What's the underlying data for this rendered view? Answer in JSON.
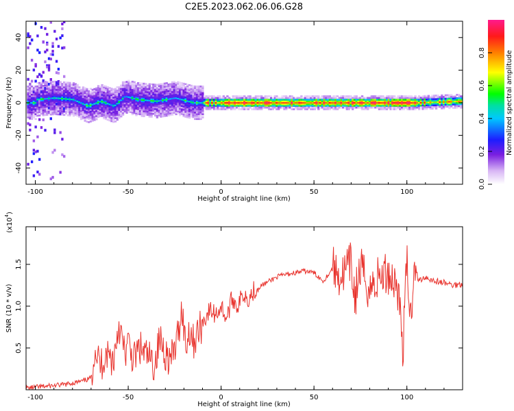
{
  "title": "C2E5.2023.062.06.06.G28",
  "chart_data": [
    {
      "type": "heatmap",
      "xlabel": "Height of straight line (km)",
      "ylabel": "Frequency (Hz)",
      "xlim": [
        -105,
        130
      ],
      "ylim": [
        -50,
        50
      ],
      "xticks": [
        -100,
        -50,
        0,
        50,
        100
      ],
      "xtick_labels": [
        "-100",
        "-50",
        "0",
        "50",
        "100"
      ],
      "yticks": [
        -40,
        -20,
        0,
        20,
        40
      ],
      "ytick_labels": [
        "-40",
        "-20",
        "0",
        "20",
        "40"
      ],
      "ridge": {
        "description_points": [
          {
            "x": -100,
            "y": 2
          },
          {
            "x": -90,
            "y": 3
          },
          {
            "x": -80,
            "y": 2
          },
          {
            "x": -72,
            "y": -2
          },
          {
            "x": -65,
            "y": 1
          },
          {
            "x": -58,
            "y": -2
          },
          {
            "x": -52,
            "y": 4
          },
          {
            "x": -45,
            "y": 2
          },
          {
            "x": -35,
            "y": 1
          },
          {
            "x": -25,
            "y": 3
          },
          {
            "x": -15,
            "y": 0
          },
          {
            "x": 0,
            "y": 0
          },
          {
            "x": 50,
            "y": 0
          },
          {
            "x": 100,
            "y": 0
          },
          {
            "x": 105,
            "y": 0
          },
          {
            "x": 130,
            "y": 1
          }
        ]
      },
      "colorbar": {
        "label": "Normalized spectral amplitude",
        "range": [
          0,
          1
        ],
        "ticks": [
          0.0,
          0.2,
          0.4,
          0.6,
          0.8
        ],
        "tick_labels": [
          "0.0",
          "0.2",
          "0.4",
          "0.6",
          "0.8"
        ]
      }
    },
    {
      "type": "line",
      "xlabel": "Height of straight line (km)",
      "ylabel": "SNR (10 * v/v)",
      "multiplier_label": "(x10",
      "multiplier_exp": "4",
      "xlim": [
        -105,
        130
      ],
      "ylim": [
        0.0,
        1.95
      ],
      "xticks": [
        -100,
        -50,
        0,
        50,
        100
      ],
      "xtick_labels": [
        "-100",
        "-50",
        "0",
        "50",
        "100"
      ],
      "yticks": [
        0.5,
        1.0,
        1.5
      ],
      "ytick_labels": [
        "0.5",
        "1.0",
        "1.5"
      ],
      "series": [
        {
          "color": "#e8302a",
          "x": [
            -105,
            -95,
            -85,
            -75,
            -70,
            -68,
            -65,
            -62,
            -58,
            -55,
            -52,
            -50,
            -47,
            -44,
            -40,
            -36,
            -33,
            -30,
            -27,
            -24,
            -21,
            -19,
            -17,
            -15,
            -12,
            -9,
            -6,
            -3,
            0,
            3,
            6,
            9,
            12,
            15,
            18,
            22,
            26,
            30,
            35,
            40,
            45,
            50,
            55,
            60,
            65,
            70,
            72,
            75,
            80,
            85,
            90,
            95,
            98,
            100,
            102,
            104,
            106,
            110,
            115,
            120,
            125,
            130
          ],
          "y": [
            0.02,
            0.04,
            0.06,
            0.1,
            0.14,
            0.52,
            0.28,
            0.45,
            0.35,
            0.8,
            0.42,
            0.55,
            0.35,
            0.5,
            0.4,
            0.3,
            0.6,
            0.45,
            0.35,
            0.55,
            1.0,
            0.5,
            0.75,
            0.58,
            0.7,
            0.85,
            0.95,
            0.9,
            1.0,
            0.85,
            1.1,
            1.0,
            1.15,
            1.1,
            1.2,
            1.25,
            1.3,
            1.35,
            1.38,
            1.4,
            1.42,
            1.4,
            1.3,
            1.45,
            1.35,
            1.5,
            1.1,
            1.45,
            1.2,
            1.35,
            1.4,
            1.25,
            0.5,
            1.55,
            0.8,
            1.6,
            1.3,
            1.35,
            1.3,
            1.28,
            1.25,
            1.27
          ]
        }
      ]
    }
  ]
}
